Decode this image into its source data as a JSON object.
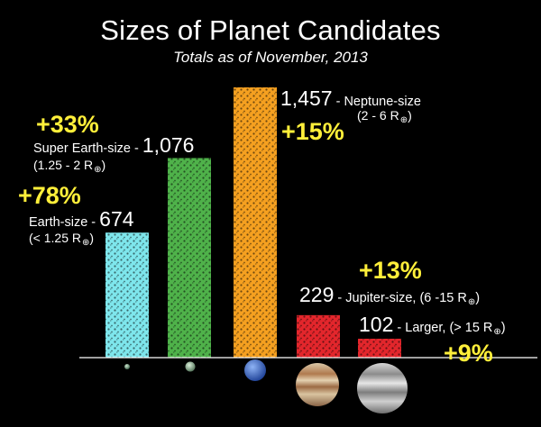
{
  "title": "Sizes of Planet Candidates",
  "subtitle": "Totals as of November, 2013",
  "chart_data": {
    "type": "bar",
    "title": "Sizes of Planet Candidates",
    "subtitle": "Totals as of November, 2013",
    "categories": [
      "Earth-size",
      "Super Earth-size",
      "Neptune-size",
      "Jupiter-size",
      "Larger"
    ],
    "values": [
      674,
      1076,
      1457,
      229,
      102
    ],
    "value_labels": [
      "674",
      "1,076",
      "1,457",
      "229",
      "102"
    ],
    "ranges": [
      "(< 1.25 R",
      "(1.25 - 2 R",
      "(2 - 6 R",
      "(6 -15 R",
      "(> 15 R"
    ],
    "range_close": ")",
    "radius_symbol": "⊕",
    "percent_changes": [
      "+78%",
      "+33%",
      "+15%",
      "+13%",
      "+9%"
    ],
    "colors": [
      "#7ee6ec",
      "#4fb24a",
      "#f5a020",
      "#e3262c",
      "#e3262c"
    ],
    "percent_color": "#ffef3a",
    "xlabel": "",
    "ylabel": "",
    "ylim": [
      0,
      1457
    ],
    "grid": false,
    "legend": "none"
  },
  "labels": {
    "earth_desc": "Earth-size - ",
    "super_desc": "Super Earth-size - ",
    "neptune_desc": " - Neptune-size",
    "jupiter_desc": " - Jupiter-size, ",
    "larger_desc": " - Larger, "
  }
}
